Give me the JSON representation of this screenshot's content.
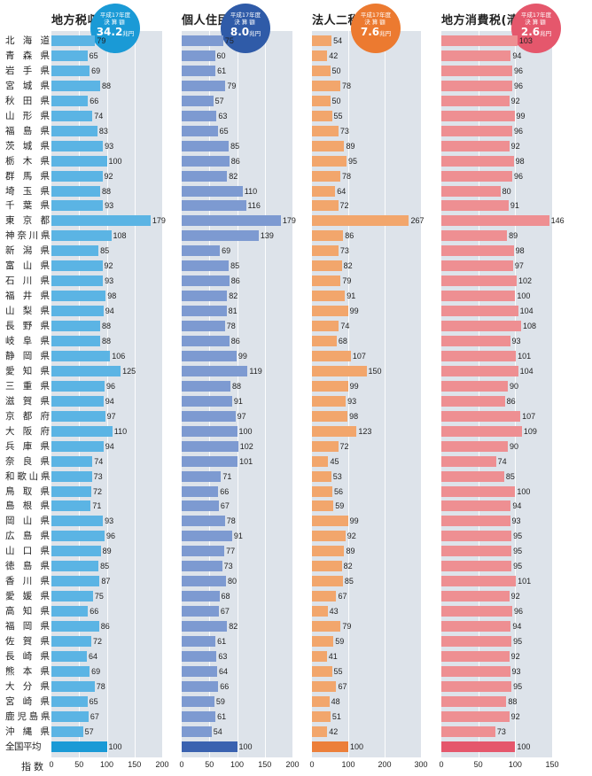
{
  "chart_data": {
    "type": "bar",
    "orientation": "horizontal",
    "categories": [
      "北海道",
      "青森県",
      "岩手県",
      "宮城県",
      "秋田県",
      "山形県",
      "福島県",
      "茨城県",
      "栃木県",
      "群馬県",
      "埼玉県",
      "千葉県",
      "東京都",
      "神奈川県",
      "新潟県",
      "富山県",
      "石川県",
      "福井県",
      "山梨県",
      "長野県",
      "岐阜県",
      "静岡県",
      "愛知県",
      "三重県",
      "滋賀県",
      "京都府",
      "大阪府",
      "兵庫県",
      "奈良県",
      "和歌山県",
      "鳥取県",
      "島根県",
      "岡山県",
      "広島県",
      "山口県",
      "徳島県",
      "香川県",
      "愛媛県",
      "高知県",
      "福岡県",
      "佐賀県",
      "長崎県",
      "熊本県",
      "大分県",
      "宮崎県",
      "鹿児島県",
      "沖縄県",
      "全国平均"
    ],
    "xlabel": "指数",
    "series": [
      {
        "name": "地方税収計",
        "badge": {
          "line1": "平成17年度",
          "line2": "決算額",
          "amount": "34.2",
          "unit": "兆円"
        },
        "color": "#5bb4e4",
        "avg_color": "#1a9ad6",
        "ticks": [
          "0",
          "50",
          "100",
          "150",
          "200"
        ],
        "xlim": [
          0,
          200
        ],
        "values": [
          79,
          65,
          69,
          88,
          66,
          74,
          83,
          93,
          100,
          92,
          88,
          93,
          179,
          108,
          85,
          92,
          93,
          98,
          94,
          88,
          88,
          106,
          125,
          96,
          94,
          97,
          110,
          94,
          74,
          73,
          72,
          71,
          93,
          96,
          89,
          85,
          87,
          75,
          66,
          86,
          72,
          64,
          69,
          78,
          65,
          67,
          57,
          100
        ]
      },
      {
        "name": "個人住民税",
        "badge": {
          "line1": "平成17年度",
          "line2": "決算額",
          "amount": "8.0",
          "unit": "兆円"
        },
        "color": "#7d9ad1",
        "avg_color": "#3a62b0",
        "ticks": [
          "0",
          "50",
          "100",
          "150",
          "200"
        ],
        "xlim": [
          0,
          200
        ],
        "values": [
          75,
          60,
          61,
          79,
          57,
          63,
          65,
          85,
          86,
          82,
          110,
          116,
          179,
          139,
          69,
          85,
          86,
          82,
          81,
          78,
          86,
          99,
          119,
          88,
          91,
          97,
          100,
          102,
          101,
          71,
          66,
          67,
          78,
          91,
          77,
          73,
          80,
          68,
          67,
          82,
          61,
          63,
          64,
          66,
          59,
          61,
          54,
          100
        ]
      },
      {
        "name": "法人二税",
        "badge": {
          "line1": "平成17年度",
          "line2": "決算額",
          "amount": "7.6",
          "unit": "兆円"
        },
        "color": "#f2a66c",
        "avg_color": "#ec7f3a",
        "ticks": [
          "0",
          "100",
          "200",
          "300"
        ],
        "xlim": [
          0,
          300
        ],
        "values": [
          54,
          42,
          50,
          78,
          50,
          55,
          73,
          89,
          95,
          78,
          64,
          72,
          267,
          86,
          73,
          82,
          79,
          91,
          99,
          74,
          68,
          107,
          150,
          99,
          93,
          98,
          123,
          72,
          45,
          53,
          56,
          59,
          99,
          92,
          89,
          82,
          85,
          67,
          43,
          79,
          59,
          41,
          55,
          67,
          48,
          51,
          42,
          100
        ]
      },
      {
        "name": "地方消費税(清算後)",
        "badge": {
          "line1": "平成17年度",
          "line2": "決算額",
          "amount": "2.6",
          "unit": "兆円"
        },
        "color": "#ee8f92",
        "avg_color": "#e5576c",
        "ticks": [
          "0",
          "50",
          "100",
          "150"
        ],
        "xlim": [
          0,
          150
        ],
        "values": [
          103,
          94,
          96,
          96,
          92,
          99,
          96,
          92,
          98,
          96,
          80,
          91,
          146,
          89,
          98,
          97,
          102,
          100,
          104,
          108,
          93,
          101,
          104,
          90,
          86,
          107,
          109,
          90,
          74,
          85,
          100,
          94,
          93,
          95,
          95,
          95,
          101,
          92,
          96,
          94,
          95,
          92,
          93,
          95,
          88,
          92,
          73,
          100
        ]
      }
    ]
  }
}
